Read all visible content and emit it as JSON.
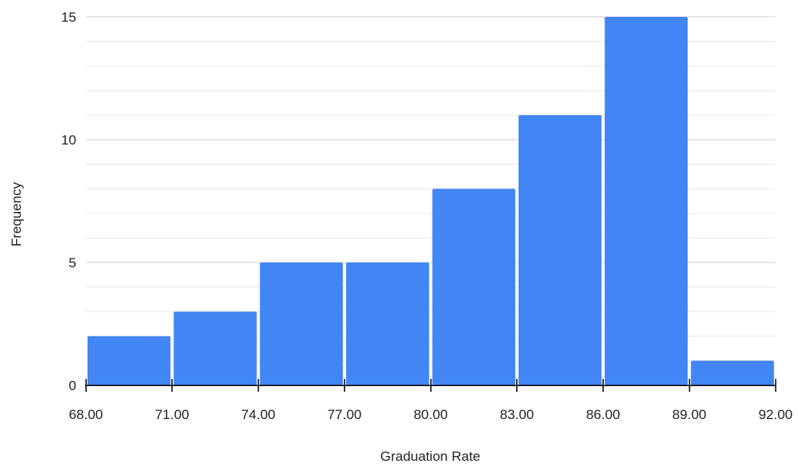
{
  "chart_data": {
    "type": "bar",
    "histogram": true,
    "xlabel": "Graduation Rate",
    "ylabel": "Frequency",
    "bin_edges": [
      68,
      71,
      74,
      77,
      80,
      83,
      86,
      89,
      92
    ],
    "x_tick_labels": [
      "68.00",
      "71.00",
      "74.00",
      "77.00",
      "80.00",
      "83.00",
      "86.00",
      "89.00",
      "92.00"
    ],
    "values": [
      2,
      3,
      5,
      5,
      8,
      11,
      15,
      1
    ],
    "ylim": [
      0,
      15
    ],
    "y_ticks": [
      0,
      5,
      10,
      15
    ],
    "y_tick_labels": [
      "0",
      "5",
      "10",
      "15"
    ],
    "minor_gridlines": true,
    "grid": true,
    "legend": "none",
    "colors": {
      "bar": "#4285f4",
      "grid_major": "#cccccc",
      "grid_minor": "#e6e6e6",
      "axis": "#000000",
      "text": "#222222"
    }
  }
}
